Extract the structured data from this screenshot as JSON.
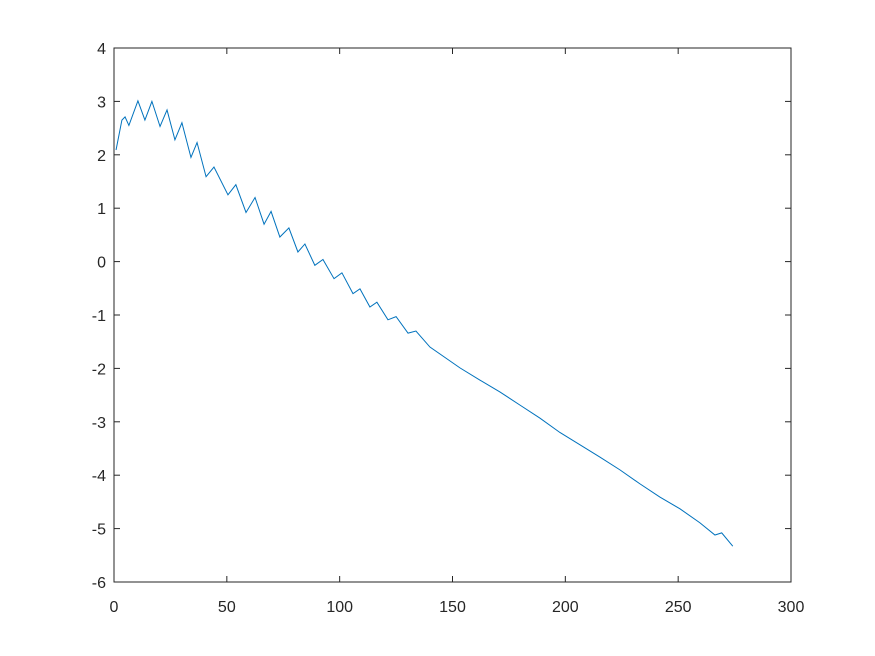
{
  "chart_data": {
    "type": "line",
    "x": [
      0.9,
      3.5,
      4.9,
      6.6,
      10.6,
      13.7,
      16.8,
      20.4,
      23.5,
      27,
      30.1,
      34.1,
      36.8,
      40.8,
      44.3,
      50.5,
      54,
      58.5,
      62.5,
      66.5,
      69.6,
      73.5,
      77.5,
      81.5,
      84.6,
      89,
      92.6,
      97.5,
      101,
      105.9,
      109,
      113.4,
      116.5,
      121.4,
      125,
      130.3,
      133.8,
      140,
      153.3,
      162.2,
      171,
      180,
      188.7,
      197.6,
      206.5,
      215.3,
      224.2,
      233,
      241.9,
      250.8,
      259.6,
      266.3,
      269.3,
      274.2
    ],
    "series": [
      {
        "color": "#0072bd",
        "values": [
          2.09,
          2.65,
          2.71,
          2.55,
          3.01,
          2.65,
          3.0,
          2.53,
          2.84,
          2.28,
          2.6,
          1.95,
          2.23,
          1.59,
          1.77,
          1.25,
          1.44,
          0.92,
          1.2,
          0.7,
          0.94,
          0.46,
          0.63,
          0.18,
          0.33,
          -0.07,
          0.04,
          -0.32,
          -0.21,
          -0.6,
          -0.51,
          -0.85,
          -0.76,
          -1.09,
          -1.03,
          -1.34,
          -1.3,
          -1.6,
          -1.99,
          -2.22,
          -2.44,
          -2.69,
          -2.93,
          -3.2,
          -3.43,
          -3.66,
          -3.9,
          -4.16,
          -4.41,
          -4.63,
          -4.89,
          -5.12,
          -5.08,
          -5.33
        ]
      }
    ],
    "xlim": [
      0,
      300
    ],
    "xticks": [
      0,
      50,
      100,
      150,
      200,
      250,
      300
    ],
    "ylim": [
      -6,
      4
    ],
    "yticks": [
      -6,
      -5,
      -4,
      -3,
      -2,
      -1,
      0,
      1,
      2,
      3,
      4
    ]
  }
}
